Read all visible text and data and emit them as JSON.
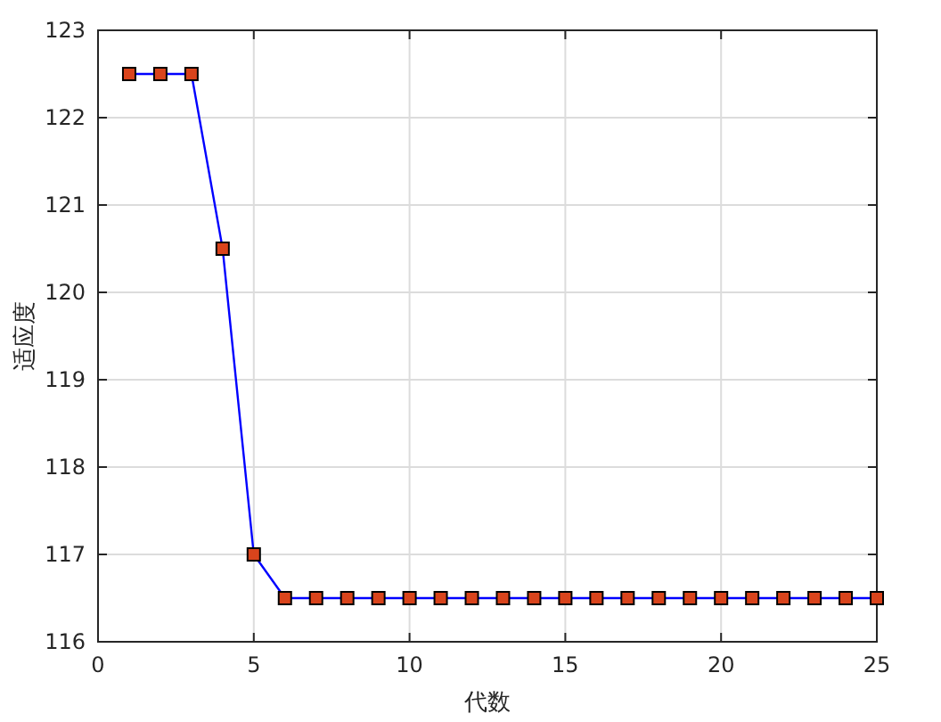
{
  "chart_data": {
    "type": "line",
    "xlabel": "代数",
    "ylabel": "适应度",
    "x": [
      1,
      2,
      3,
      4,
      5,
      6,
      7,
      8,
      9,
      10,
      11,
      12,
      13,
      14,
      15,
      16,
      17,
      18,
      19,
      20,
      21,
      22,
      23,
      24,
      25
    ],
    "series": [
      {
        "color": "#0000ff",
        "values": [
          122.5,
          122.5,
          122.5,
          120.5,
          117,
          116.5,
          116.5,
          116.5,
          116.5,
          116.5,
          116.5,
          116.5,
          116.5,
          116.5,
          116.5,
          116.5,
          116.5,
          116.5,
          116.5,
          116.5,
          116.5,
          116.5,
          116.5,
          116.5,
          116.5
        ]
      }
    ],
    "xlim": [
      0,
      25
    ],
    "ylim": [
      116,
      123
    ],
    "xticks": [
      0,
      5,
      10,
      15,
      20,
      25
    ],
    "yticks": [
      116,
      117,
      118,
      119,
      120,
      121,
      122,
      123
    ],
    "grid": true,
    "marker": "square",
    "line_style": "solid"
  }
}
